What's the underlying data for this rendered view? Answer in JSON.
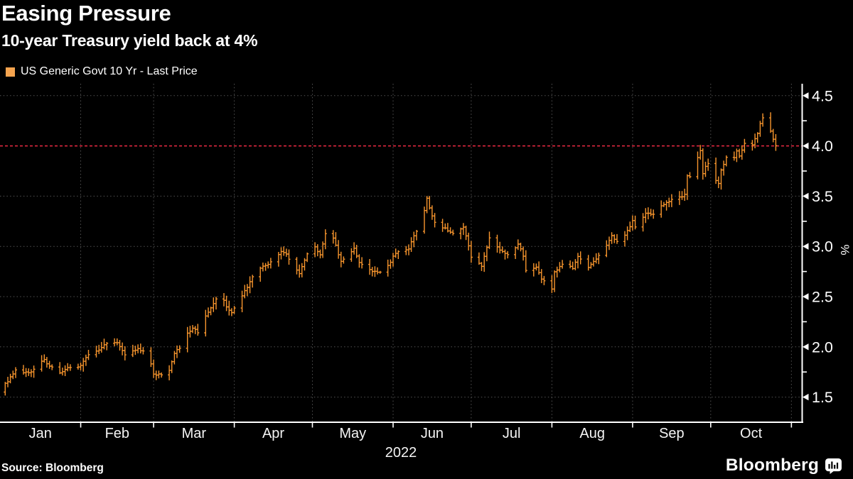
{
  "header": {
    "title": "Easing Pressure",
    "subtitle": "10-year Treasury yield back at 4%"
  },
  "legend": {
    "label": "US Generic Govt 10 Yr - Last Price",
    "swatch_color": "#F6A44F"
  },
  "footer": {
    "source": "Source: Bloomberg",
    "brand": "Bloomberg"
  },
  "colors": {
    "background": "#000000",
    "text": "#FFFFFF",
    "axis": "#FFFFFF",
    "grid": "#525252",
    "line": "#F7952D",
    "reference": "#ED2B43"
  },
  "chart_data": {
    "type": "line",
    "render_style": "ohlc-bars",
    "title": "Easing Pressure",
    "subtitle": "10-year Treasury yield back at 4%",
    "series_name": "US Generic Govt 10 Yr - Last Price",
    "unit": "%",
    "year_label": "2022",
    "legend_position": "top-left",
    "grid": "dotted",
    "x_months": {
      "labels": [
        "Jan",
        "Feb",
        "Mar",
        "Apr",
        "May",
        "Jun",
        "Jul",
        "Aug",
        "Sep",
        "Oct"
      ],
      "start_doy": [
        1,
        32,
        60,
        91,
        121,
        152,
        182,
        213,
        244,
        274
      ],
      "axis_end_doy": 305
    },
    "ylim": [
      1.25,
      4.6
    ],
    "y_major_ticks": [
      1.5,
      2.0,
      2.5,
      3.0,
      3.5,
      4.0,
      4.5
    ],
    "y_minor_step": 0.25,
    "reference_line": {
      "value": 4.0,
      "style": "dashed",
      "color": "#ED2B43"
    },
    "series": [
      {
        "name": "US Generic Govt 10 Yr - Last Price",
        "color": "#F7952D",
        "points_doy_value": [
          [
            1,
            1.55
          ],
          [
            3,
            1.63
          ],
          [
            4,
            1.66
          ],
          [
            7,
            1.77
          ],
          [
            12,
            1.74
          ],
          [
            14,
            1.78
          ],
          [
            18,
            1.87
          ],
          [
            19,
            1.83
          ],
          [
            24,
            1.74
          ],
          [
            27,
            1.8
          ],
          [
            31,
            1.79
          ],
          [
            35,
            1.92
          ],
          [
            39,
            1.96
          ],
          [
            41,
            2.03
          ],
          [
            46,
            2.05
          ],
          [
            49,
            1.92
          ],
          [
            54,
            1.98
          ],
          [
            56,
            1.96
          ],
          [
            59,
            1.83
          ],
          [
            60,
            1.72
          ],
          [
            63,
            1.73
          ],
          [
            66,
            1.77
          ],
          [
            68,
            1.94
          ],
          [
            70,
            1.99
          ],
          [
            73,
            2.14
          ],
          [
            75,
            2.19
          ],
          [
            77,
            2.15
          ],
          [
            80,
            2.3
          ],
          [
            84,
            2.48
          ],
          [
            87,
            2.46
          ],
          [
            88,
            2.4
          ],
          [
            90,
            2.34
          ],
          [
            91,
            2.39
          ],
          [
            95,
            2.55
          ],
          [
            98,
            2.7
          ],
          [
            101,
            2.78
          ],
          [
            104,
            2.83
          ],
          [
            109,
            2.94
          ],
          [
            111,
            2.92
          ],
          [
            116,
            2.72
          ],
          [
            118,
            2.86
          ],
          [
            119,
            2.93
          ],
          [
            122,
            2.99
          ],
          [
            124,
            2.92
          ],
          [
            126,
            3.12
          ],
          [
            129,
            3.08
          ],
          [
            132,
            2.85
          ],
          [
            137,
            2.98
          ],
          [
            139,
            2.84
          ],
          [
            144,
            2.75
          ],
          [
            147,
            2.74
          ],
          [
            151,
            2.84
          ],
          [
            152,
            2.91
          ],
          [
            154,
            2.95
          ],
          [
            158,
            2.98
          ],
          [
            161,
            3.16
          ],
          [
            164,
            3.36
          ],
          [
            165,
            3.47
          ],
          [
            167,
            3.3
          ],
          [
            168,
            3.23
          ],
          [
            173,
            3.16
          ],
          [
            175,
            3.13
          ],
          [
            179,
            3.2
          ],
          [
            181,
            3.01
          ],
          [
            182,
            2.89
          ],
          [
            186,
            2.81
          ],
          [
            189,
            3.08
          ],
          [
            193,
            2.96
          ],
          [
            196,
            2.92
          ],
          [
            200,
            3.02
          ],
          [
            202,
            2.91
          ],
          [
            203,
            2.77
          ],
          [
            207,
            2.8
          ],
          [
            209,
            2.68
          ],
          [
            210,
            2.65
          ],
          [
            213,
            2.58
          ],
          [
            214,
            2.74
          ],
          [
            217,
            2.83
          ],
          [
            221,
            2.78
          ],
          [
            223,
            2.89
          ],
          [
            227,
            2.79
          ],
          [
            230,
            2.88
          ],
          [
            234,
            3.02
          ],
          [
            236,
            3.11
          ],
          [
            238,
            3.04
          ],
          [
            241,
            3.11
          ],
          [
            243,
            3.19
          ],
          [
            244,
            3.26
          ],
          [
            245,
            3.19
          ],
          [
            249,
            3.33
          ],
          [
            252,
            3.32
          ],
          [
            256,
            3.42
          ],
          [
            258,
            3.45
          ],
          [
            262,
            3.49
          ],
          [
            264,
            3.51
          ],
          [
            265,
            3.71
          ],
          [
            266,
            3.69
          ],
          [
            269,
            3.88
          ],
          [
            270,
            3.95
          ],
          [
            271,
            3.73
          ],
          [
            272,
            3.79
          ],
          [
            273,
            3.83
          ],
          [
            276,
            3.65
          ],
          [
            277,
            3.62
          ],
          [
            278,
            3.76
          ],
          [
            280,
            3.88
          ],
          [
            283,
            3.88
          ],
          [
            284,
            3.94
          ],
          [
            285,
            3.9
          ],
          [
            286,
            3.95
          ],
          [
            287,
            4.02
          ],
          [
            290,
            4.01
          ],
          [
            292,
            4.13
          ],
          [
            293,
            4.23
          ],
          [
            294,
            4.28
          ],
          [
            297,
            4.15
          ],
          [
            298,
            4.06
          ],
          [
            299,
            4.01
          ]
        ]
      }
    ]
  }
}
